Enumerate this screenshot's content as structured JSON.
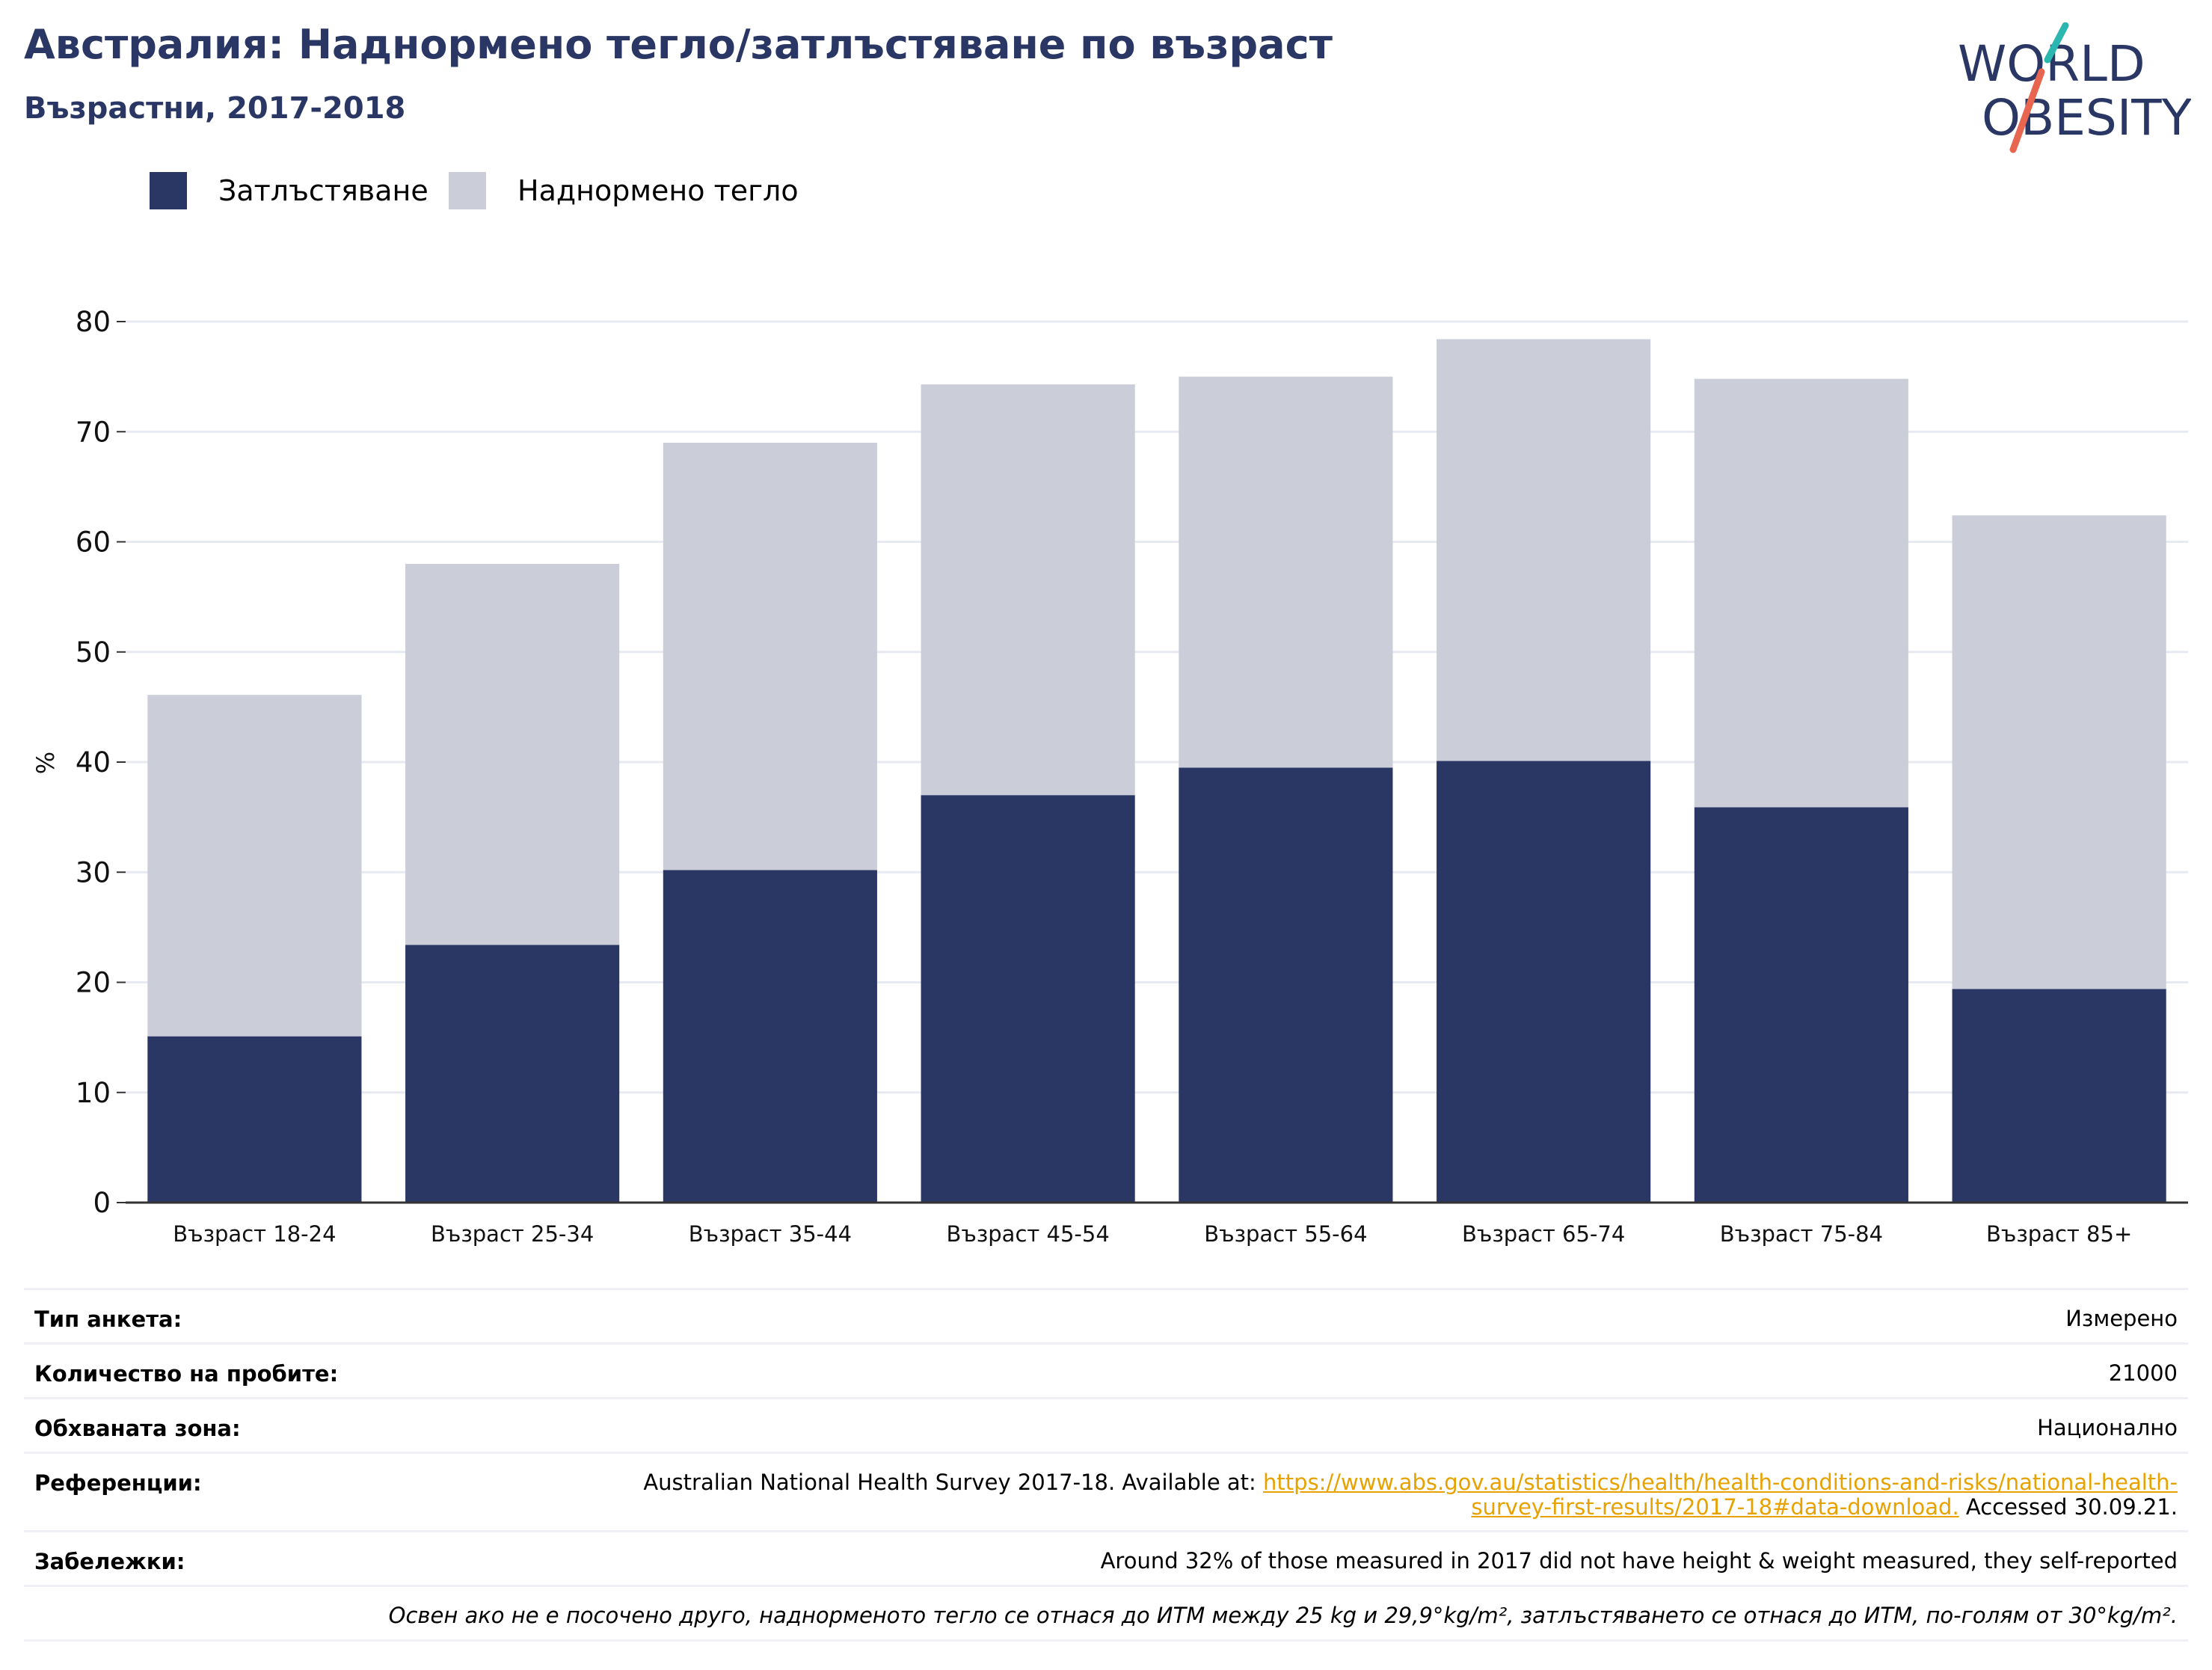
{
  "header": {
    "title": "Австралия: Наднормено тегло/затлъстяване по възраст",
    "subtitle": "Възрастни, 2017-2018"
  },
  "logo": {
    "line1": "WORLD",
    "line2": "OBESITY",
    "icon": "world-obesity-logo"
  },
  "legend": [
    {
      "label": "Затлъстяване",
      "color": "#2a3765"
    },
    {
      "label": "Наднормено тегло",
      "color": "#cbcdd9"
    }
  ],
  "chart_data": {
    "type": "bar",
    "stacked": true,
    "title": "Австралия: Наднормено тегло/затлъстяване по възраст",
    "ylabel": "%",
    "ylim": [
      0,
      80
    ],
    "yticks": [
      0,
      10,
      20,
      30,
      40,
      50,
      60,
      70,
      80
    ],
    "grid": true,
    "legend_position": "top-left",
    "categories": [
      "Възраст 18-24",
      "Възраст 25-34",
      "Възраст 35-44",
      "Възраст 45-54",
      "Възраст 55-64",
      "Възраст 65-74",
      "Възраст 75-84",
      "Възраст 85+"
    ],
    "series": [
      {
        "name": "Затлъстяване",
        "color": "#2a3765",
        "values": [
          15.1,
          23.4,
          30.2,
          37.0,
          39.5,
          40.1,
          35.9,
          19.4
        ]
      },
      {
        "name": "Наднормено тегло",
        "color": "#cbcdd9",
        "values": [
          31.0,
          34.6,
          38.8,
          37.3,
          35.5,
          38.3,
          38.9,
          43.0
        ]
      }
    ]
  },
  "meta": {
    "survey_type": {
      "label": "Тип анкета:",
      "value": "Измерено"
    },
    "sample_size": {
      "label": "Количество на пробите:",
      "value": "21000"
    },
    "area": {
      "label": "Обхваната зона:",
      "value": "Национално"
    },
    "references": {
      "label": "Референции:",
      "prefix": "Australian National Health Survey 2017-18. Available at: ",
      "link_line1": "https://www.abs.gov.au/statistics/health/health-conditions-and-risks/national-health-",
      "link_line2": "survey-first-results/2017-18#data-download.",
      "suffix": " Accessed 30.09.21."
    },
    "notes": {
      "label": "Забележки:",
      "value": "Around 32% of those measured in 2017 did not have height & weight measured, they self-reported"
    },
    "footnote": "Освен ако не е посочено друго, наднорменото тегло се отнася до ИТМ между 25 kg и 29,9°kg/m², затлъстяването се отнася до ИТМ, по-голям от 30°kg/m²."
  }
}
